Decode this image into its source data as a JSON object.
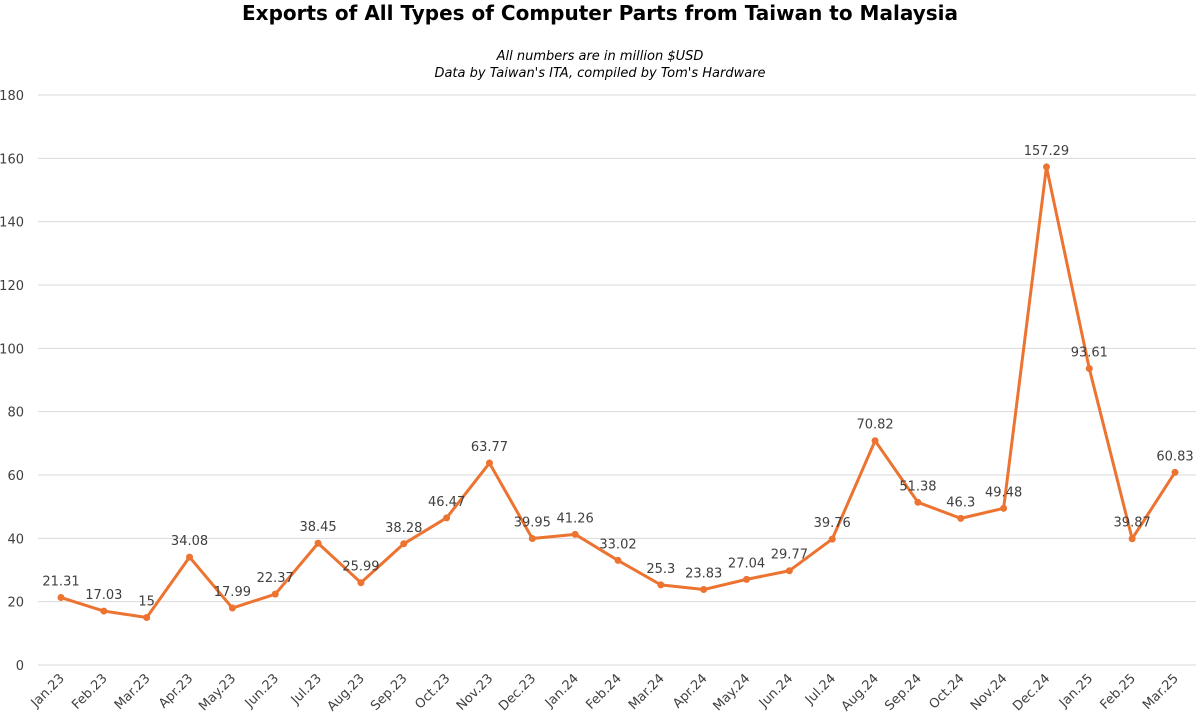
{
  "chart_data": {
    "type": "line",
    "title": "Exports of All Types of Computer Parts from Taiwan to Malaysia",
    "subtitle": [
      "All numbers are in million $USD",
      "Data by Taiwan's ITA, compiled by Tom's Hardware"
    ],
    "categories": [
      "Jan.23",
      "Feb.23",
      "Mar.23",
      "Apr.23",
      "May.23",
      "Jun.23",
      "Jul.23",
      "Aug.23",
      "Sep.23",
      "Oct.23",
      "Nov.23",
      "Dec.23",
      "Jan.24",
      "Feb.24",
      "Mar.24",
      "Apr.24",
      "May.24",
      "Jun.24",
      "Jul.24",
      "Aug.24",
      "Sep.24",
      "Oct.24",
      "Nov.24",
      "Dec.24",
      "Jan.25",
      "Feb.25",
      "Mar.25"
    ],
    "values": [
      21.31,
      17.03,
      15,
      34.08,
      17.99,
      22.37,
      38.45,
      25.99,
      38.28,
      46.47,
      63.77,
      39.95,
      41.26,
      33.02,
      25.3,
      23.83,
      27.04,
      29.77,
      39.76,
      70.82,
      51.38,
      46.3,
      49.48,
      157.29,
      93.61,
      39.87,
      60.83
    ],
    "color": "#ec7330",
    "ylim": [
      0,
      180
    ],
    "yticks": [
      0,
      20,
      40,
      60,
      80,
      100,
      120,
      140,
      160,
      180
    ],
    "grid": true
  }
}
